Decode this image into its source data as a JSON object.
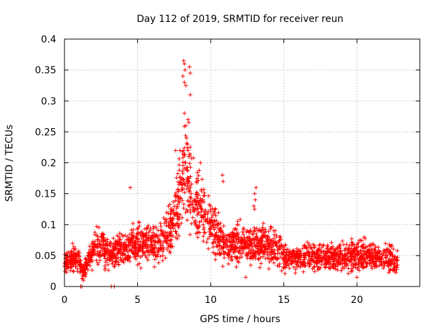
{
  "chart_data": {
    "type": "scatter",
    "title": "Day 112 of 2019, SRMTID for receiver reun",
    "xlabel": "GPS time / hours",
    "ylabel": "SRMTID / TECUs",
    "xlim": [
      0,
      24.3
    ],
    "ylim": [
      0,
      0.4
    ],
    "xticks": [
      0,
      5,
      10,
      15,
      20
    ],
    "xtick_labels": [
      "0",
      "5",
      "10",
      "15",
      "20"
    ],
    "yticks": [
      0,
      0.05,
      0.1,
      0.15,
      0.2,
      0.25,
      0.3,
      0.35,
      0.4
    ],
    "ytick_labels": [
      "0",
      "0.05",
      "0.1",
      "0.15",
      "0.2",
      "0.25",
      "0.3",
      "0.35",
      "0.4"
    ],
    "grid": true,
    "marker": "+",
    "series": [
      {
        "name": "SRMTID",
        "color": "#ff0000",
        "trend_x": [
          0,
          0.5,
          1.0,
          1.2,
          1.6,
          2.2,
          2.6,
          3.0,
          3.5,
          4.0,
          4.5,
          5.0,
          5.5,
          6.0,
          6.5,
          7.0,
          7.5,
          7.9,
          8.2,
          8.5,
          9.0,
          9.5,
          10.0,
          10.5,
          11.0,
          11.5,
          12.0,
          12.5,
          13.0,
          13.5,
          14.0,
          14.5,
          15.0,
          15.5,
          16.0,
          17.0,
          18.0,
          19.0,
          20.0,
          21.0,
          22.0,
          22.8
        ],
        "trend_y": [
          0.04,
          0.045,
          0.045,
          0.02,
          0.04,
          0.065,
          0.07,
          0.05,
          0.055,
          0.06,
          0.065,
          0.07,
          0.075,
          0.065,
          0.07,
          0.085,
          0.11,
          0.14,
          0.19,
          0.17,
          0.13,
          0.12,
          0.1,
          0.08,
          0.06,
          0.065,
          0.07,
          0.065,
          0.07,
          0.07,
          0.065,
          0.06,
          0.05,
          0.045,
          0.045,
          0.048,
          0.05,
          0.05,
          0.05,
          0.05,
          0.045,
          0.04
        ],
        "outlier_points": [
          [
            8.15,
            0.365
          ],
          [
            8.2,
            0.36
          ],
          [
            8.25,
            0.35
          ],
          [
            8.1,
            0.34
          ],
          [
            8.2,
            0.33
          ],
          [
            8.3,
            0.325
          ],
          [
            8.55,
            0.355
          ],
          [
            8.6,
            0.345
          ],
          [
            8.6,
            0.31
          ],
          [
            8.2,
            0.28
          ],
          [
            8.45,
            0.27
          ],
          [
            8.5,
            0.265
          ],
          [
            8.3,
            0.26
          ],
          [
            8.35,
            0.24
          ],
          [
            8.4,
            0.23
          ],
          [
            8.45,
            0.22
          ],
          [
            8.5,
            0.21
          ],
          [
            8.25,
            0.2
          ],
          [
            8.3,
            0.19
          ],
          [
            9.3,
            0.2
          ],
          [
            7.6,
            0.22
          ],
          [
            7.9,
            0.22
          ],
          [
            10.8,
            0.18
          ],
          [
            10.85,
            0.17
          ],
          [
            4.5,
            0.16
          ],
          [
            13.1,
            0.16
          ],
          [
            13.0,
            0.15
          ],
          [
            13.05,
            0.14
          ],
          [
            12.95,
            0.13
          ],
          [
            13.0,
            0.125
          ],
          [
            1.2,
            0.0
          ],
          [
            1.1,
            0.0
          ],
          [
            3.2,
            0.0
          ],
          [
            3.4,
            0.0
          ],
          [
            1.3,
            0.01
          ],
          [
            20.0,
            0.015
          ],
          [
            12.4,
            0.015
          ]
        ]
      }
    ]
  }
}
